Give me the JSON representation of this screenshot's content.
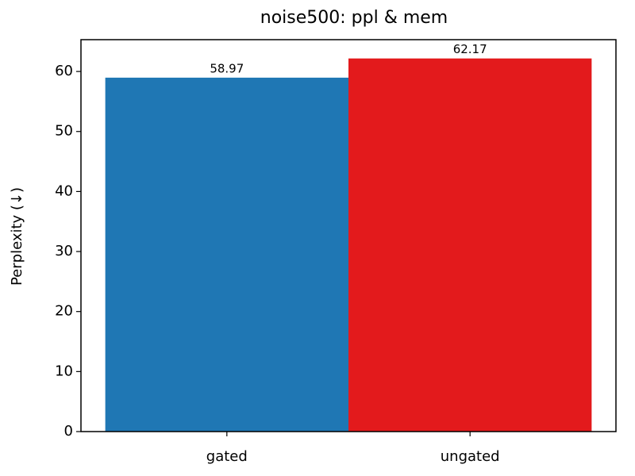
{
  "chart_data": {
    "type": "bar",
    "title": "noise500: ppl & mem",
    "y_label": "Perplexity (↓)",
    "categories": [
      "gated",
      "ungated"
    ],
    "values": [
      58.97,
      62.17
    ],
    "colors": [
      "#1f77b4",
      "#e31a1c"
    ],
    "ylim": [
      0,
      65.3
    ],
    "yticks": [
      0,
      10,
      20,
      30,
      40,
      50,
      60
    ],
    "grid": false
  }
}
